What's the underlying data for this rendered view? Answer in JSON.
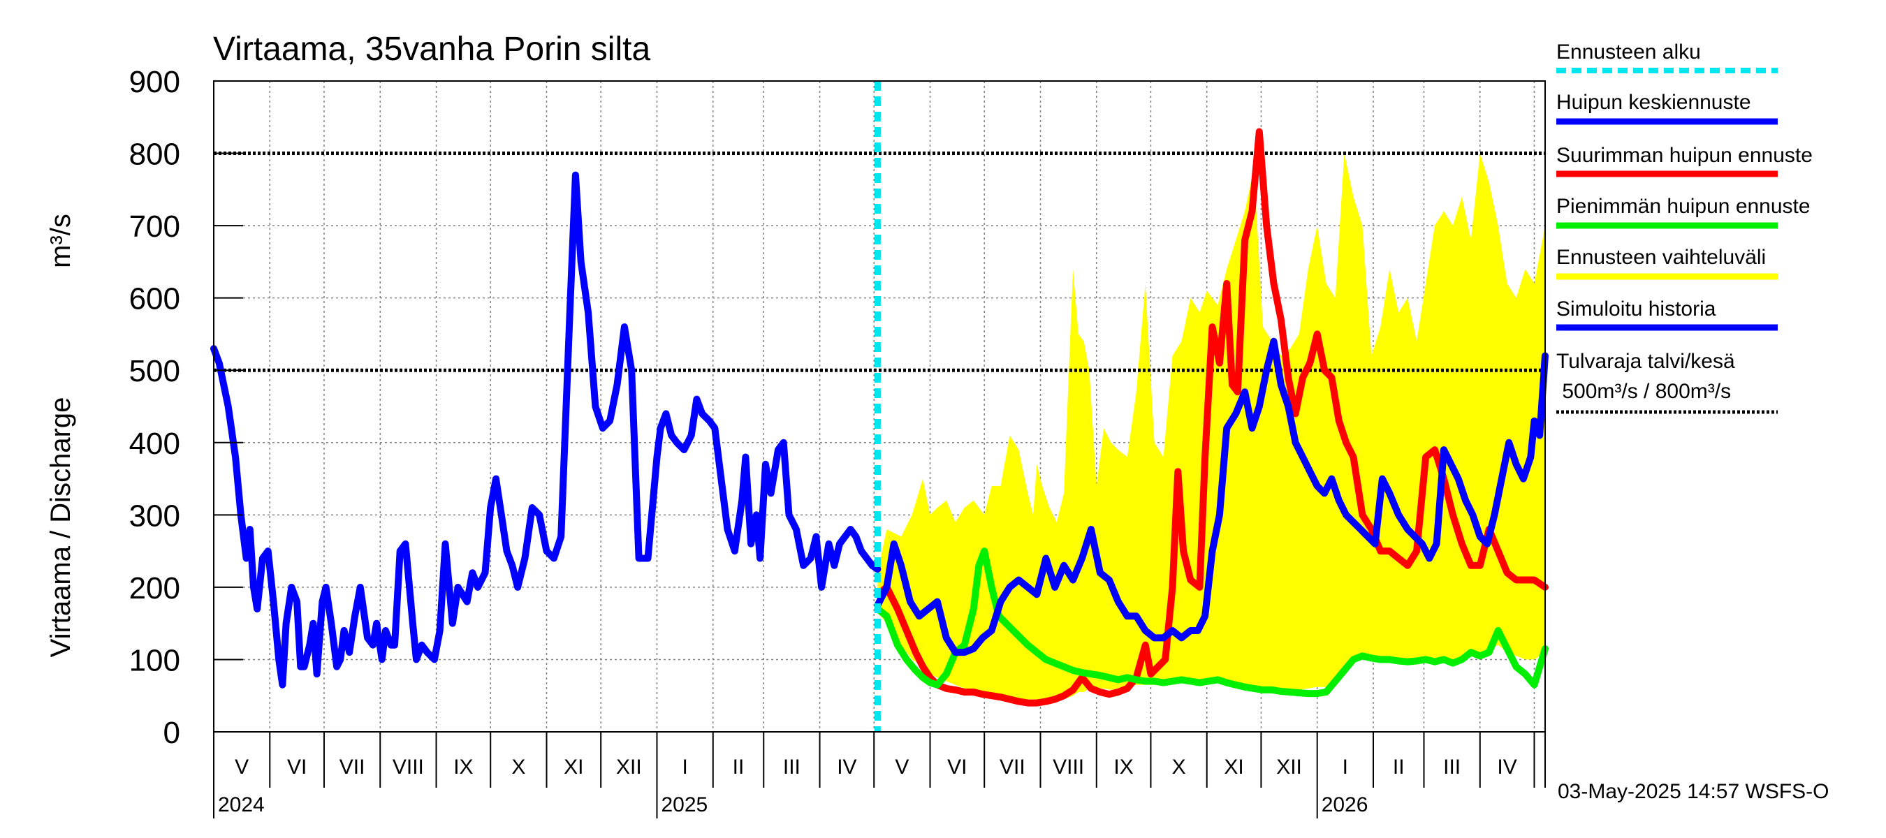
{
  "chart_data": {
    "type": "line",
    "title": "Virtaama, 35vanha Porin silta",
    "ylabel": "Virtaama / Discharge",
    "yunit": "m³/s",
    "ylim": [
      0,
      900
    ],
    "yticks": [
      0,
      100,
      200,
      300,
      400,
      500,
      600,
      700,
      800,
      900
    ],
    "grid": true,
    "x_range_days": [
      0,
      736
    ],
    "months": [
      {
        "label": "V",
        "start": 0
      },
      {
        "label": "VI",
        "start": 31
      },
      {
        "label": "VII",
        "start": 61
      },
      {
        "label": "VIII",
        "start": 92
      },
      {
        "label": "IX",
        "start": 123
      },
      {
        "label": "X",
        "start": 153
      },
      {
        "label": "XI",
        "start": 184
      },
      {
        "label": "XII",
        "start": 214
      },
      {
        "label": "I",
        "start": 245
      },
      {
        "label": "II",
        "start": 276
      },
      {
        "label": "III",
        "start": 304
      },
      {
        "label": "IV",
        "start": 335
      },
      {
        "label": "V",
        "start": 365
      },
      {
        "label": "VI",
        "start": 396
      },
      {
        "label": "VII",
        "start": 426
      },
      {
        "label": "VIII",
        "start": 457
      },
      {
        "label": "IX",
        "start": 488
      },
      {
        "label": "X",
        "start": 518
      },
      {
        "label": "XI",
        "start": 549
      },
      {
        "label": "XII",
        "start": 579
      },
      {
        "label": "I",
        "start": 610
      },
      {
        "label": "II",
        "start": 641
      },
      {
        "label": "III",
        "start": 669
      },
      {
        "label": "IV",
        "start": 700
      },
      {
        "label": "",
        "start": 730
      }
    ],
    "years": [
      {
        "label": "2024",
        "day": 0
      },
      {
        "label": "2025",
        "day": 245
      },
      {
        "label": "2026",
        "day": 610
      }
    ],
    "forecast_start_day": 367,
    "flood_limits": [
      500,
      800
    ],
    "series": [
      {
        "name": "Simuloitu historia",
        "color": "#0000ff",
        "x": [
          0,
          3,
          8,
          12,
          15,
          18,
          20,
          22,
          24,
          27,
          30,
          33,
          36,
          38,
          40,
          43,
          46,
          48,
          50,
          53,
          55,
          57,
          60,
          62,
          65,
          68,
          70,
          72,
          75,
          78,
          81,
          85,
          88,
          90,
          93,
          95,
          98,
          100,
          103,
          106,
          110,
          112,
          115,
          118,
          122,
          125,
          128,
          132,
          135,
          140,
          143,
          146,
          150,
          153,
          156,
          159,
          162,
          165,
          168,
          172,
          176,
          180,
          184,
          188,
          192,
          197,
          200,
          203,
          207,
          211,
          215,
          219,
          223,
          227,
          231,
          235,
          240,
          245,
          247,
          250,
          253,
          256,
          260,
          264,
          267,
          270,
          274,
          277,
          280,
          284,
          288,
          292,
          294,
          297,
          300,
          302,
          305,
          308,
          312,
          315,
          318,
          322,
          326,
          330,
          333,
          336,
          340,
          343,
          346,
          349,
          352,
          355,
          358,
          361,
          364,
          367
        ],
        "y": [
          530,
          510,
          450,
          380,
          300,
          240,
          280,
          200,
          170,
          240,
          250,
          180,
          100,
          65,
          150,
          200,
          180,
          90,
          90,
          120,
          150,
          80,
          180,
          200,
          150,
          90,
          100,
          140,
          110,
          160,
          200,
          130,
          120,
          150,
          100,
          140,
          120,
          120,
          250,
          260,
          150,
          100,
          120,
          110,
          100,
          140,
          260,
          150,
          200,
          180,
          220,
          200,
          220,
          310,
          350,
          300,
          250,
          230,
          200,
          240,
          310,
          300,
          250,
          240,
          270,
          590,
          770,
          650,
          580,
          450,
          420,
          430,
          480,
          560,
          500,
          240,
          240,
          380,
          420,
          440,
          410,
          400,
          390,
          410,
          460,
          440,
          430,
          420,
          360,
          280,
          250,
          320,
          380,
          260,
          300,
          240,
          370,
          330,
          390,
          400,
          300,
          280,
          230,
          240,
          270,
          200,
          260,
          230,
          260,
          270,
          280,
          270,
          250,
          240,
          230,
          225
        ]
      },
      {
        "name": "Ennusteen vaihteluväli",
        "color": "#ffff00",
        "x": [
          367,
          372,
          380,
          386,
          392,
          396,
          400,
          405,
          410,
          415,
          420,
          426,
          430,
          435,
          440,
          445,
          450,
          453,
          455,
          458,
          462,
          466,
          470,
          475,
          478,
          481,
          484,
          488,
          492,
          496,
          500,
          505,
          510,
          515,
          520,
          525,
          530,
          535,
          540,
          545,
          549,
          555,
          560,
          565,
          570,
          575,
          580,
          585,
          590,
          595,
          600,
          605,
          610,
          615,
          620,
          625,
          630,
          635,
          640,
          645,
          650,
          655,
          660,
          665,
          670,
          675,
          680,
          685,
          690,
          695,
          700,
          705,
          710,
          715,
          720,
          725,
          730,
          736
        ],
        "y_high": [
          220,
          280,
          270,
          300,
          350,
          300,
          310,
          320,
          290,
          310,
          320,
          300,
          340,
          340,
          410,
          390,
          330,
          300,
          370,
          340,
          310,
          290,
          330,
          640,
          550,
          540,
          500,
          340,
          420,
          400,
          390,
          380,
          470,
          620,
          400,
          380,
          520,
          540,
          600,
          580,
          610,
          590,
          640,
          680,
          720,
          780,
          560,
          540,
          520,
          530,
          550,
          640,
          700,
          620,
          600,
          800,
          740,
          700,
          520,
          560,
          640,
          580,
          600,
          540,
          620,
          700,
          720,
          700,
          740,
          680,
          800,
          760,
          700,
          620,
          600,
          640,
          620,
          700
        ],
        "y_low": [
          165,
          150,
          120,
          100,
          90,
          80,
          75,
          70,
          65,
          60,
          55,
          55,
          55,
          50,
          45,
          45,
          45,
          45,
          45,
          45,
          45,
          45,
          45,
          50,
          55,
          55,
          60,
          60,
          60,
          58,
          60,
          62,
          65,
          65,
          65,
          66,
          68,
          68,
          68,
          70,
          70,
          70,
          68,
          65,
          65,
          62,
          60,
          60,
          58,
          58,
          58,
          60,
          62,
          62,
          70,
          85,
          100,
          102,
          100,
          100,
          100,
          95,
          95,
          98,
          100,
          98,
          100,
          95,
          100,
          105,
          110,
          115,
          120,
          110,
          105,
          100,
          100,
          110
        ]
      },
      {
        "name": "Suurimman huipun ennuste",
        "color": "#ff0000",
        "x": [
          367,
          372,
          378,
          383,
          388,
          392,
          396,
          400,
          405,
          410,
          415,
          420,
          425,
          430,
          435,
          440,
          445,
          450,
          455,
          460,
          465,
          470,
          475,
          480,
          485,
          490,
          495,
          500,
          505,
          510,
          515,
          518,
          522,
          526,
          530,
          533,
          536,
          540,
          545,
          548,
          552,
          556,
          560,
          563,
          566,
          570,
          574,
          578,
          582,
          586,
          590,
          594,
          598,
          602,
          606,
          610,
          614,
          618,
          622,
          626,
          630,
          635,
          640,
          645,
          650,
          655,
          660,
          665,
          670,
          675,
          680,
          685,
          690,
          695,
          700,
          705,
          710,
          715,
          720,
          725,
          730,
          736
        ],
        "y": [
          190,
          200,
          170,
          140,
          110,
          90,
          75,
          65,
          60,
          58,
          55,
          55,
          52,
          50,
          48,
          45,
          42,
          40,
          40,
          42,
          45,
          50,
          58,
          75,
          60,
          55,
          52,
          55,
          60,
          75,
          120,
          80,
          90,
          100,
          200,
          360,
          250,
          210,
          200,
          380,
          560,
          510,
          620,
          480,
          470,
          680,
          720,
          830,
          700,
          620,
          570,
          490,
          440,
          490,
          510,
          550,
          500,
          490,
          430,
          400,
          380,
          300,
          280,
          250,
          250,
          240,
          230,
          250,
          380,
          390,
          350,
          300,
          260,
          230,
          230,
          280,
          250,
          220,
          210,
          210,
          210,
          200
        ]
      },
      {
        "name": "Pienimmän huipun ennuste",
        "color": "#00ee00",
        "x": [
          367,
          372,
          378,
          383,
          388,
          392,
          396,
          400,
          405,
          410,
          415,
          420,
          423,
          426,
          430,
          434,
          438,
          442,
          446,
          450,
          455,
          460,
          465,
          470,
          475,
          480,
          485,
          490,
          495,
          500,
          505,
          510,
          515,
          520,
          525,
          530,
          535,
          540,
          545,
          550,
          555,
          560,
          565,
          570,
          575,
          580,
          585,
          590,
          595,
          600,
          605,
          610,
          615,
          620,
          625,
          630,
          635,
          640,
          645,
          650,
          655,
          660,
          665,
          670,
          675,
          680,
          685,
          690,
          695,
          700,
          705,
          710,
          715,
          720,
          725,
          730,
          736
        ],
        "y": [
          170,
          160,
          120,
          100,
          85,
          75,
          68,
          65,
          80,
          110,
          120,
          170,
          230,
          250,
          200,
          160,
          150,
          140,
          130,
          120,
          110,
          100,
          95,
          90,
          85,
          82,
          80,
          78,
          75,
          72,
          75,
          72,
          70,
          70,
          68,
          70,
          72,
          70,
          68,
          70,
          72,
          68,
          65,
          62,
          60,
          58,
          58,
          56,
          55,
          54,
          53,
          53,
          55,
          70,
          85,
          100,
          105,
          102,
          100,
          100,
          98,
          97,
          98,
          100,
          97,
          100,
          95,
          100,
          110,
          105,
          110,
          140,
          115,
          90,
          80,
          65,
          115
        ]
      },
      {
        "name": "Huipun keskiennuste",
        "color": "#0000ff",
        "x": [
          367,
          372,
          376,
          380,
          385,
          390,
          395,
          400,
          405,
          410,
          415,
          420,
          425,
          430,
          435,
          440,
          445,
          450,
          455,
          460,
          465,
          470,
          475,
          480,
          485,
          490,
          495,
          500,
          505,
          510,
          515,
          520,
          525,
          530,
          535,
          540,
          544,
          548,
          552,
          556,
          560,
          565,
          570,
          574,
          578,
          582,
          586,
          590,
          594,
          598,
          602,
          606,
          610,
          614,
          618,
          622,
          626,
          630,
          634,
          638,
          642,
          646,
          650,
          655,
          660,
          664,
          668,
          672,
          676,
          680,
          684,
          688,
          692,
          696,
          700,
          704,
          708,
          712,
          716,
          720,
          724,
          728,
          730,
          733,
          736
        ],
        "y": [
          175,
          200,
          260,
          230,
          180,
          160,
          170,
          180,
          130,
          110,
          110,
          115,
          130,
          140,
          180,
          200,
          210,
          200,
          190,
          240,
          200,
          230,
          210,
          240,
          280,
          220,
          210,
          180,
          160,
          160,
          140,
          130,
          130,
          140,
          130,
          140,
          140,
          160,
          250,
          300,
          420,
          440,
          470,
          420,
          450,
          500,
          540,
          480,
          450,
          400,
          380,
          360,
          340,
          330,
          350,
          320,
          300,
          290,
          280,
          270,
          260,
          350,
          330,
          300,
          280,
          270,
          260,
          240,
          260,
          390,
          370,
          350,
          320,
          300,
          270,
          260,
          300,
          350,
          400,
          370,
          350,
          380,
          430,
          410,
          520
        ]
      }
    ],
    "legend": {
      "forecast_start": "Ennusteen alku",
      "mean_peak": "Huipun keskiennuste",
      "max_peak": "Suurimman huipun ennuste",
      "min_peak": "Pienimmän huipun ennuste",
      "range": "Ennusteen vaihteluväli",
      "history": "Simuloitu historia",
      "flood_limit": "Tulvaraja talvi/kesä",
      "flood_limit_values": " 500m³/s / 800m³/s"
    },
    "colors": {
      "history": "#0000ff",
      "mean_peak": "#0000ff",
      "max_peak": "#ff0000",
      "min_peak": "#00ee00",
      "range": "#ffff00",
      "forecast_start": "#00e5ee",
      "flood_limit": "#000000"
    },
    "timestamp": "03-May-2025 14:57 WSFS-O"
  }
}
